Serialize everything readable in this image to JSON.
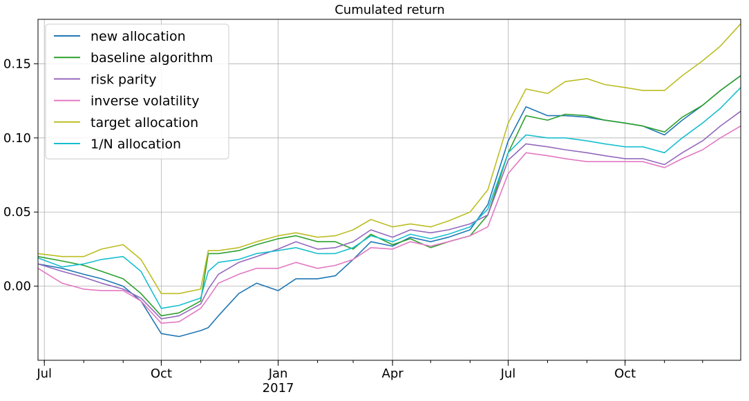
{
  "chart_data": {
    "type": "line",
    "title": "Cumulated return",
    "xlabel": "",
    "ylabel": "",
    "x_range": [
      "2016-06-26",
      "2017-12-31"
    ],
    "ylim": [
      -0.05,
      0.18
    ],
    "grid": true,
    "legend_position": "top-left",
    "x_ticks": [
      {
        "date": "2016-07-01",
        "label": "Jul",
        "sublabel": ""
      },
      {
        "date": "2016-10-01",
        "label": "Oct",
        "sublabel": ""
      },
      {
        "date": "2017-01-01",
        "label": "Jan",
        "sublabel": "2017"
      },
      {
        "date": "2017-04-01",
        "label": "Apr",
        "sublabel": ""
      },
      {
        "date": "2017-07-01",
        "label": "Jul",
        "sublabel": ""
      },
      {
        "date": "2017-10-01",
        "label": "Oct",
        "sublabel": ""
      }
    ],
    "y_ticks": [
      {
        "value": 0.0,
        "label": "0.00"
      },
      {
        "value": 0.05,
        "label": "0.05"
      },
      {
        "value": 0.1,
        "label": "0.10"
      },
      {
        "value": 0.15,
        "label": "0.15"
      }
    ],
    "x": [
      "2016-06-26",
      "2016-07-15",
      "2016-08-01",
      "2016-08-15",
      "2016-09-01",
      "2016-09-15",
      "2016-10-01",
      "2016-10-15",
      "2016-11-01",
      "2016-11-07",
      "2016-11-15",
      "2016-12-01",
      "2016-12-15",
      "2017-01-01",
      "2017-01-15",
      "2017-02-01",
      "2017-02-15",
      "2017-03-01",
      "2017-03-15",
      "2017-04-01",
      "2017-04-15",
      "2017-05-01",
      "2017-05-15",
      "2017-06-01",
      "2017-06-15",
      "2017-07-01",
      "2017-07-15",
      "2017-08-01",
      "2017-08-15",
      "2017-09-01",
      "2017-09-15",
      "2017-10-01",
      "2017-10-15",
      "2017-11-01",
      "2017-11-15",
      "2017-12-01",
      "2017-12-15",
      "2017-12-31"
    ],
    "series": [
      {
        "name": "new allocation",
        "color": "#1f77b4",
        "values": [
          0.015,
          0.012,
          0.008,
          0.005,
          0.0,
          -0.01,
          -0.032,
          -0.034,
          -0.03,
          -0.028,
          -0.02,
          -0.005,
          0.002,
          -0.003,
          0.005,
          0.005,
          0.007,
          0.018,
          0.03,
          0.027,
          0.033,
          0.03,
          0.033,
          0.038,
          0.055,
          0.098,
          0.121,
          0.115,
          0.115,
          0.114,
          0.112,
          0.11,
          0.108,
          0.102,
          0.112,
          0.122,
          0.132,
          0.142
        ]
      },
      {
        "name": "baseline algorithm",
        "color": "#2ca02c",
        "values": [
          0.02,
          0.017,
          0.014,
          0.01,
          0.005,
          -0.005,
          -0.02,
          -0.018,
          -0.01,
          0.022,
          0.022,
          0.024,
          0.028,
          0.032,
          0.034,
          0.03,
          0.03,
          0.025,
          0.035,
          0.028,
          0.032,
          0.026,
          0.03,
          0.034,
          0.048,
          0.09,
          0.115,
          0.112,
          0.116,
          0.115,
          0.112,
          0.11,
          0.108,
          0.104,
          0.114,
          0.122,
          0.132,
          0.142
        ]
      },
      {
        "name": "risk parity",
        "color": "#9467bd",
        "values": [
          0.015,
          0.01,
          0.006,
          0.002,
          -0.002,
          -0.008,
          -0.022,
          -0.02,
          -0.012,
          -0.002,
          0.008,
          0.016,
          0.02,
          0.025,
          0.03,
          0.025,
          0.026,
          0.03,
          0.038,
          0.033,
          0.038,
          0.036,
          0.038,
          0.042,
          0.048,
          0.085,
          0.096,
          0.094,
          0.092,
          0.09,
          0.088,
          0.086,
          0.086,
          0.082,
          0.09,
          0.098,
          0.108,
          0.118
        ]
      },
      {
        "name": "inverse volatility",
        "color": "#e377c2",
        "values": [
          0.012,
          0.002,
          -0.002,
          -0.003,
          -0.003,
          -0.01,
          -0.025,
          -0.024,
          -0.015,
          -0.008,
          0.002,
          0.008,
          0.012,
          0.012,
          0.016,
          0.012,
          0.014,
          0.018,
          0.026,
          0.025,
          0.03,
          0.027,
          0.03,
          0.034,
          0.04,
          0.076,
          0.09,
          0.088,
          0.086,
          0.084,
          0.084,
          0.084,
          0.084,
          0.08,
          0.086,
          0.092,
          0.1,
          0.108
        ]
      },
      {
        "name": "target allocation",
        "color": "#bcbd22",
        "values": [
          0.022,
          0.02,
          0.02,
          0.025,
          0.028,
          0.018,
          -0.005,
          -0.005,
          -0.002,
          0.024,
          0.024,
          0.026,
          0.03,
          0.034,
          0.036,
          0.033,
          0.034,
          0.038,
          0.045,
          0.04,
          0.042,
          0.04,
          0.044,
          0.05,
          0.065,
          0.11,
          0.133,
          0.13,
          0.138,
          0.14,
          0.136,
          0.134,
          0.132,
          0.132,
          0.142,
          0.152,
          0.162,
          0.177
        ]
      },
      {
        "name": "1/N allocation",
        "color": "#17becf",
        "values": [
          0.019,
          0.013,
          0.015,
          0.018,
          0.02,
          0.01,
          -0.015,
          -0.013,
          -0.008,
          0.01,
          0.016,
          0.018,
          0.022,
          0.024,
          0.026,
          0.022,
          0.022,
          0.026,
          0.034,
          0.03,
          0.035,
          0.032,
          0.035,
          0.04,
          0.052,
          0.09,
          0.102,
          0.1,
          0.1,
          0.098,
          0.096,
          0.094,
          0.094,
          0.09,
          0.1,
          0.11,
          0.12,
          0.134
        ]
      }
    ]
  }
}
